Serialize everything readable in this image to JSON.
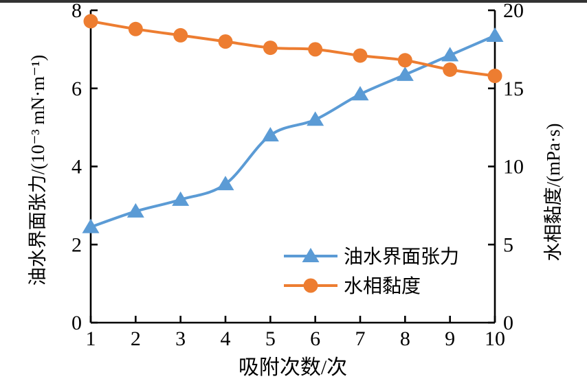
{
  "page": {
    "background_color": "#ffffff",
    "top_border_color": "#333333",
    "axis_color": "#000000",
    "text_color": "#000000"
  },
  "chart_data": {
    "type": "line",
    "title": "",
    "xlabel": "吸附次数/次",
    "x": [
      1,
      2,
      3,
      4,
      5,
      6,
      7,
      8,
      9,
      10
    ],
    "x_tick_labels": [
      "1",
      "2",
      "3",
      "4",
      "5",
      "6",
      "7",
      "8",
      "9",
      "10"
    ],
    "x_range": [
      1,
      10
    ],
    "left_axis": {
      "label": "油水界面张力/(10⁻³ mN·m⁻¹)",
      "ticks": [
        0,
        2,
        4,
        6,
        8
      ],
      "range": [
        0,
        8
      ]
    },
    "right_axis": {
      "label": "水相黏度/(mPa·s)",
      "ticks": [
        0,
        5,
        10,
        15,
        20
      ],
      "range": [
        0,
        20
      ]
    },
    "series": [
      {
        "name": "油水界面张力",
        "axis": "left",
        "marker": "triangle",
        "color": "#5B9BD5",
        "values": [
          2.45,
          2.85,
          3.15,
          3.55,
          4.8,
          5.2,
          5.85,
          6.35,
          6.85,
          7.35
        ]
      },
      {
        "name": "水相黏度",
        "axis": "right",
        "marker": "circle",
        "color": "#ED7D31",
        "values": [
          19.3,
          18.8,
          18.4,
          18.0,
          17.6,
          17.5,
          17.1,
          16.8,
          16.2,
          15.8
        ]
      }
    ],
    "legend": {
      "position": "inside-lower-right",
      "entries": [
        "油水界面张力",
        "水相黏度"
      ]
    },
    "grid": false
  }
}
